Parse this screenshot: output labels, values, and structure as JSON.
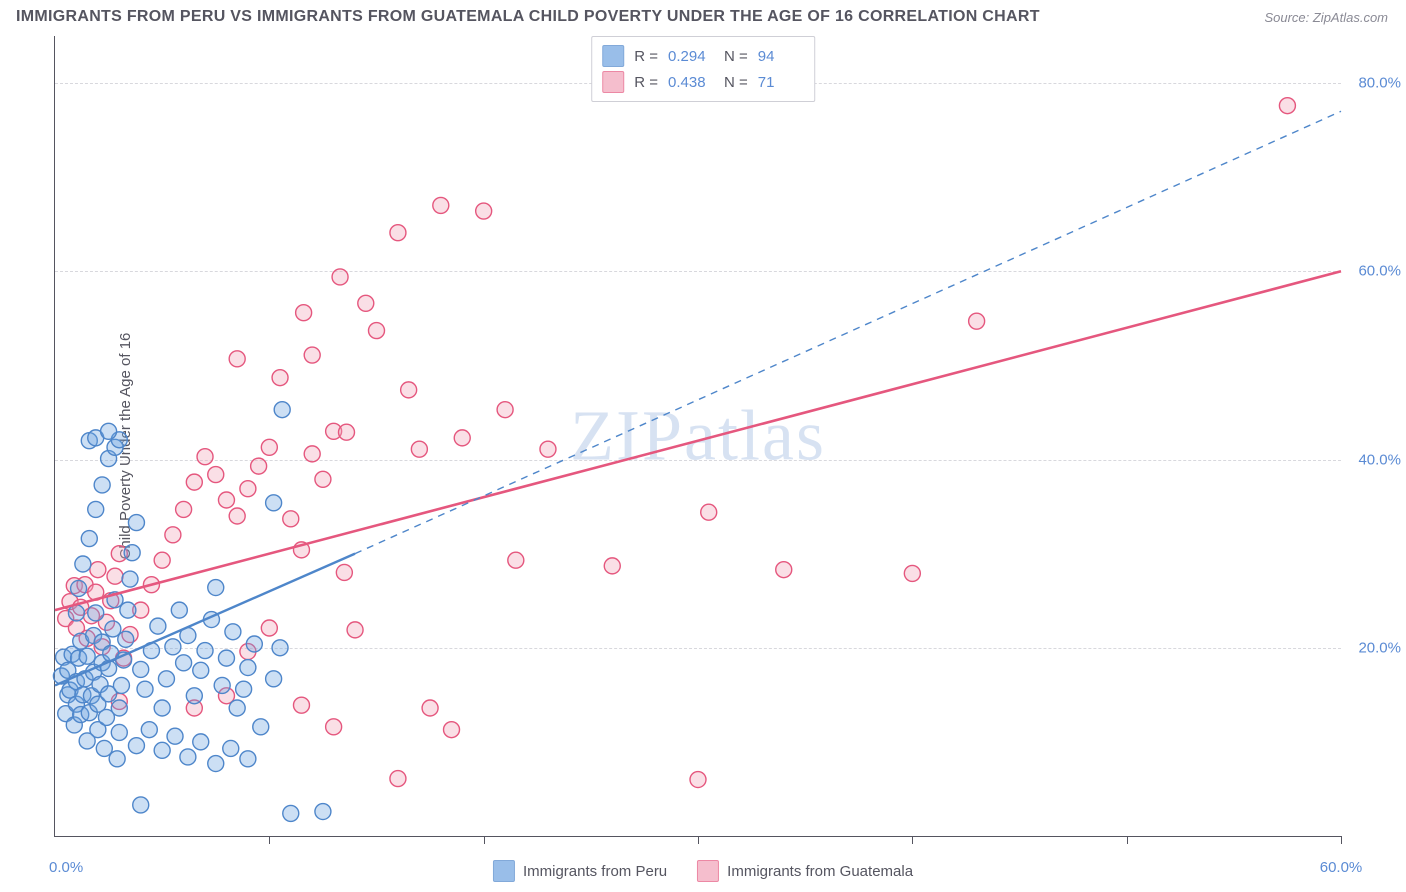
{
  "title": "IMMIGRANTS FROM PERU VS IMMIGRANTS FROM GUATEMALA CHILD POVERTY UNDER THE AGE OF 16 CORRELATION CHART",
  "source_label": "Source: ZipAtlas.com",
  "y_axis_label": "Child Poverty Under the Age of 16",
  "watermark": "ZIPatlas",
  "chart": {
    "type": "scatter",
    "background_color": "#ffffff",
    "grid_color": "#d8d8dd",
    "axis_color": "#555560",
    "xlim": [
      0,
      60
    ],
    "ylim": [
      0,
      85
    ],
    "ytick_labels": [
      "20.0%",
      "40.0%",
      "60.0%",
      "80.0%"
    ],
    "ytick_values": [
      20,
      40,
      60,
      80
    ],
    "xtick_label_origin": "0.0%",
    "xtick_label_end": "60.0%",
    "xtick_minor_values": [
      10,
      20,
      30,
      40,
      50,
      60
    ],
    "marker_radius": 8,
    "marker_fill_opacity": 0.35,
    "marker_stroke_width": 1.4
  },
  "series": {
    "peru": {
      "label": "Immigrants from Peru",
      "color": "#6ea3e0",
      "stroke": "#4e86ca",
      "R": "0.294",
      "N": "94",
      "trend": {
        "x1": 0,
        "y1": 16,
        "x2": 14,
        "y2": 30,
        "dash_x2": 60,
        "dash_y2": 77,
        "width": 2.4
      },
      "points": [
        [
          0.3,
          17
        ],
        [
          0.4,
          19
        ],
        [
          0.5,
          13
        ],
        [
          0.6,
          15
        ],
        [
          0.7,
          15.5
        ],
        [
          0.6,
          17.6
        ],
        [
          0.8,
          19.3
        ],
        [
          0.9,
          11.8
        ],
        [
          1.0,
          14
        ],
        [
          1.0,
          16.4
        ],
        [
          1.1,
          18.9
        ],
        [
          1.2,
          20.7
        ],
        [
          1.2,
          12.9
        ],
        [
          1.3,
          15
        ],
        [
          1.4,
          16.7
        ],
        [
          1.5,
          19.1
        ],
        [
          1.5,
          10.1
        ],
        [
          1.6,
          13.1
        ],
        [
          1.7,
          14.9
        ],
        [
          1.8,
          17.4
        ],
        [
          1.8,
          21.3
        ],
        [
          1.9,
          23.7
        ],
        [
          2.0,
          11.3
        ],
        [
          2.0,
          14
        ],
        [
          2.1,
          16.1
        ],
        [
          2.2,
          18.4
        ],
        [
          2.2,
          20.6
        ],
        [
          2.3,
          9.3
        ],
        [
          2.4,
          12.6
        ],
        [
          2.5,
          15.1
        ],
        [
          2.5,
          17.8
        ],
        [
          2.6,
          19.4
        ],
        [
          2.7,
          22
        ],
        [
          2.8,
          25.1
        ],
        [
          2.9,
          8.2
        ],
        [
          3.0,
          11
        ],
        [
          3.0,
          13.6
        ],
        [
          3.1,
          16
        ],
        [
          3.2,
          18.7
        ],
        [
          3.3,
          20.9
        ],
        [
          3.4,
          24
        ],
        [
          3.5,
          27.3
        ],
        [
          3.6,
          30.1
        ],
        [
          3.8,
          33.3
        ],
        [
          1.0,
          23.7
        ],
        [
          1.1,
          26.3
        ],
        [
          1.3,
          28.9
        ],
        [
          1.6,
          31.6
        ],
        [
          1.9,
          34.7
        ],
        [
          2.2,
          37.3
        ],
        [
          2.5,
          40.1
        ],
        [
          2.8,
          41.3
        ],
        [
          3.0,
          42.1
        ],
        [
          1.6,
          42
        ],
        [
          1.9,
          42.3
        ],
        [
          2.5,
          43
        ],
        [
          4.0,
          17.7
        ],
        [
          4.2,
          15.6
        ],
        [
          4.5,
          19.7
        ],
        [
          4.8,
          22.3
        ],
        [
          5.0,
          13.6
        ],
        [
          5.2,
          16.7
        ],
        [
          5.5,
          20.1
        ],
        [
          5.8,
          24
        ],
        [
          6.0,
          18.4
        ],
        [
          6.2,
          21.3
        ],
        [
          6.5,
          14.9
        ],
        [
          6.8,
          17.6
        ],
        [
          7.0,
          19.7
        ],
        [
          7.3,
          23
        ],
        [
          7.5,
          26.4
        ],
        [
          7.8,
          16
        ],
        [
          8.0,
          18.9
        ],
        [
          8.3,
          21.7
        ],
        [
          8.5,
          13.6
        ],
        [
          8.8,
          15.6
        ],
        [
          9.0,
          17.9
        ],
        [
          9.3,
          20.4
        ],
        [
          3.8,
          9.6
        ],
        [
          4.4,
          11.3
        ],
        [
          5.0,
          9.1
        ],
        [
          5.6,
          10.6
        ],
        [
          6.2,
          8.4
        ],
        [
          6.8,
          10
        ],
        [
          7.5,
          7.7
        ],
        [
          8.2,
          9.3
        ],
        [
          9.0,
          8.2
        ],
        [
          9.6,
          11.6
        ],
        [
          10.2,
          16.7
        ],
        [
          10.5,
          20
        ],
        [
          10.6,
          45.3
        ],
        [
          10.2,
          35.4
        ],
        [
          11.0,
          2.4
        ],
        [
          12.5,
          2.6
        ],
        [
          4.0,
          3.3
        ]
      ]
    },
    "guatemala": {
      "label": "Immigrants from Guatemala",
      "color": "#f2a3b8",
      "stroke": "#e5577e",
      "R": "0.438",
      "N": "71",
      "trend": {
        "x1": 0,
        "y1": 24,
        "x2": 60,
        "y2": 60,
        "width": 2.6
      },
      "points": [
        [
          0.5,
          23.1
        ],
        [
          0.7,
          24.9
        ],
        [
          0.9,
          26.6
        ],
        [
          1.0,
          22.1
        ],
        [
          1.2,
          24.3
        ],
        [
          1.4,
          26.7
        ],
        [
          1.5,
          21
        ],
        [
          1.7,
          23.4
        ],
        [
          1.9,
          25.9
        ],
        [
          2.0,
          28.3
        ],
        [
          2.2,
          20.1
        ],
        [
          2.4,
          22.7
        ],
        [
          2.6,
          25
        ],
        [
          2.8,
          27.6
        ],
        [
          3.0,
          30
        ],
        [
          3.2,
          18.9
        ],
        [
          3.5,
          21.4
        ],
        [
          4.0,
          24
        ],
        [
          4.5,
          26.7
        ],
        [
          5.0,
          29.3
        ],
        [
          5.5,
          32
        ],
        [
          6.0,
          34.7
        ],
        [
          6.5,
          37.6
        ],
        [
          7.0,
          40.3
        ],
        [
          7.5,
          38.4
        ],
        [
          8.0,
          35.7
        ],
        [
          8.5,
          34
        ],
        [
          9.0,
          36.9
        ],
        [
          9.5,
          39.3
        ],
        [
          10.0,
          41.3
        ],
        [
          9.0,
          19.6
        ],
        [
          10.0,
          22.1
        ],
        [
          11.0,
          33.7
        ],
        [
          11.5,
          30.4
        ],
        [
          12.0,
          40.6
        ],
        [
          12.5,
          37.9
        ],
        [
          13.0,
          43
        ],
        [
          13.5,
          28
        ],
        [
          14.0,
          21.9
        ],
        [
          14.5,
          56.6
        ],
        [
          15.0,
          53.7
        ],
        [
          16.0,
          64.1
        ],
        [
          18.0,
          67
        ],
        [
          20.0,
          66.4
        ],
        [
          17.0,
          41.1
        ],
        [
          19.0,
          42.3
        ],
        [
          21.0,
          45.3
        ],
        [
          23.0,
          41.1
        ],
        [
          21.5,
          29.3
        ],
        [
          26.0,
          28.7
        ],
        [
          30.0,
          6
        ],
        [
          30.5,
          34.4
        ],
        [
          34.0,
          28.3
        ],
        [
          40.0,
          27.9
        ],
        [
          43.0,
          54.7
        ],
        [
          57.5,
          77.6
        ],
        [
          6.5,
          13.6
        ],
        [
          8.0,
          14.9
        ],
        [
          11.5,
          13.9
        ],
        [
          13.0,
          11.6
        ],
        [
          16.0,
          6.1
        ],
        [
          17.5,
          13.6
        ],
        [
          18.5,
          11.3
        ],
        [
          13.6,
          42.9
        ],
        [
          12.0,
          51.1
        ],
        [
          10.5,
          48.7
        ],
        [
          11.6,
          55.6
        ],
        [
          13.3,
          59.4
        ],
        [
          16.5,
          47.4
        ],
        [
          8.5,
          50.7
        ],
        [
          3.0,
          14.3
        ]
      ]
    }
  },
  "legend_top": {
    "r_label": "R =",
    "n_label": "N ="
  }
}
